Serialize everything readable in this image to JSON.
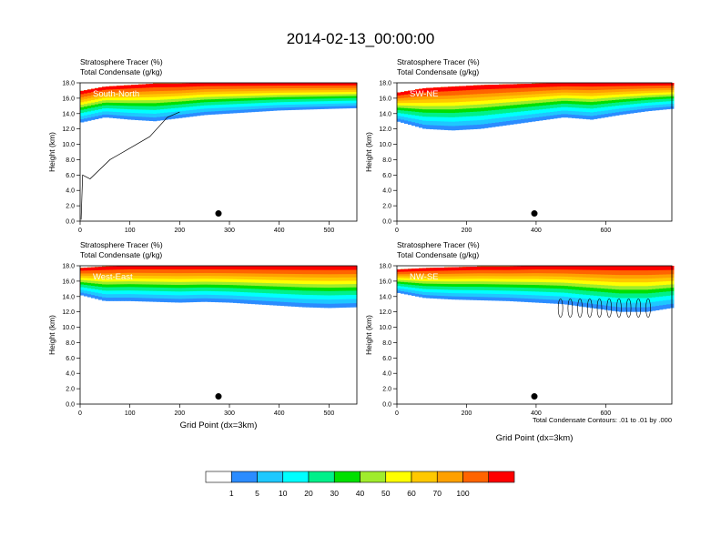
{
  "figure": {
    "title": "2014-02-13_00:00:00",
    "footnote": "Total Condensate Contours: .01 to .01 by .000"
  },
  "colorbar": {
    "colors": [
      "#ffffff",
      "#2b8cff",
      "#1ec8ff",
      "#00ffff",
      "#00f08a",
      "#00e000",
      "#a0ec2c",
      "#ffff00",
      "#ffc800",
      "#ffa000",
      "#ff6400",
      "#ff0000"
    ],
    "labels": [
      "1",
      "5",
      "10",
      "20",
      "30",
      "40",
      "50",
      "60",
      "70",
      "100"
    ]
  },
  "chart_data": [
    {
      "type": "heatmap",
      "name": "South-North",
      "title_line1": "Stratosphere Tracer   (%)",
      "title_line2": "Total Condensate   (g/kg)",
      "xlabel": "",
      "ylabel": "Height (km)",
      "xlim": [
        0,
        556
      ],
      "ylim": [
        0,
        18
      ],
      "xticks": [
        "0",
        "100",
        "200",
        "300",
        "400",
        "500"
      ],
      "yticks": [
        "0.0",
        "2.0",
        "4.0",
        "6.0",
        "8.0",
        "10.0",
        "12.0",
        "14.0",
        "16.0",
        "18.0"
      ],
      "marker_x": 278,
      "marker_y": 1.0,
      "tracer_profile_x": [
        0,
        50,
        100,
        150,
        200,
        250,
        300,
        350,
        400,
        450,
        500,
        556
      ],
      "tracer_bottom_km": [
        12.8,
        13.5,
        13.2,
        13.0,
        13.4,
        13.8,
        14.0,
        14.2,
        14.4,
        14.5,
        14.6,
        14.7
      ],
      "tracer_top_km": [
        16.2,
        16.8,
        17.0,
        17.2,
        17.2,
        17.3,
        17.3,
        17.4,
        17.4,
        17.4,
        17.4,
        17.4
      ]
    },
    {
      "type": "heatmap",
      "name": "SW-NE",
      "title_line1": "Stratosphere Tracer   (%)",
      "title_line2": "Total Condensate   (g/kg)",
      "xlabel": "",
      "ylabel": "Height (km)",
      "xlim": [
        0,
        790
      ],
      "ylim": [
        0,
        18
      ],
      "xticks": [
        "0",
        "200",
        "400",
        "600"
      ],
      "yticks": [
        "0.0",
        "2.0",
        "4.0",
        "6.0",
        "8.0",
        "10.0",
        "12.0",
        "14.0",
        "16.0",
        "18.0"
      ],
      "marker_x": 395,
      "marker_y": 1.0,
      "tracer_profile_x": [
        0,
        80,
        160,
        240,
        320,
        400,
        480,
        560,
        640,
        720,
        790
      ],
      "tracer_bottom_km": [
        13.0,
        12.0,
        11.8,
        12.0,
        12.5,
        13.0,
        13.5,
        13.2,
        13.8,
        14.3,
        14.6
      ],
      "tracer_top_km": [
        16.0,
        16.6,
        16.8,
        17.0,
        17.1,
        17.2,
        17.3,
        17.3,
        17.4,
        17.4,
        17.4
      ]
    },
    {
      "type": "heatmap",
      "name": "West-East",
      "title_line1": "Stratosphere Tracer   (%)",
      "title_line2": "Total Condensate   (g/kg)",
      "xlabel": "Grid Point (dx=3km)",
      "ylabel": "Height (km)",
      "xlim": [
        0,
        556
      ],
      "ylim": [
        0,
        18
      ],
      "xticks": [
        "0",
        "100",
        "200",
        "300",
        "400",
        "500"
      ],
      "yticks": [
        "0.0",
        "2.0",
        "4.0",
        "6.0",
        "8.0",
        "10.0",
        "12.0",
        "14.0",
        "16.0",
        "18.0"
      ],
      "marker_x": 278,
      "marker_y": 1.0,
      "tracer_profile_x": [
        0,
        50,
        100,
        150,
        200,
        250,
        300,
        350,
        400,
        450,
        500,
        556
      ],
      "tracer_bottom_km": [
        14.2,
        13.4,
        13.4,
        13.3,
        13.2,
        13.3,
        13.2,
        13.0,
        12.8,
        12.6,
        12.5,
        12.6
      ],
      "tracer_top_km": [
        17.0,
        17.2,
        17.3,
        17.3,
        17.3,
        17.3,
        17.4,
        17.4,
        17.4,
        17.4,
        17.4,
        17.4
      ]
    },
    {
      "type": "heatmap",
      "name": "NW-SE",
      "title_line1": "Stratosphere Tracer   (%)",
      "title_line2": "Total Condensate   (g/kg)",
      "xlabel": "Grid Point (dx=3km)",
      "ylabel": "Height (km)",
      "xlim": [
        0,
        790
      ],
      "ylim": [
        0,
        18
      ],
      "xticks": [
        "0",
        "200",
        "400",
        "600"
      ],
      "yticks": [
        "0.0",
        "2.0",
        "4.0",
        "6.0",
        "8.0",
        "10.0",
        "12.0",
        "14.0",
        "16.0",
        "18.0"
      ],
      "marker_x": 395,
      "marker_y": 1.0,
      "tracer_profile_x": [
        0,
        80,
        160,
        240,
        320,
        400,
        480,
        560,
        640,
        720,
        790
      ],
      "tracer_bottom_km": [
        14.5,
        13.8,
        13.6,
        13.5,
        13.4,
        13.2,
        13.0,
        12.5,
        12.0,
        12.0,
        12.5
      ],
      "tracer_top_km": [
        16.8,
        17.0,
        17.1,
        17.2,
        17.2,
        17.3,
        17.3,
        17.3,
        17.3,
        17.3,
        17.3
      ]
    }
  ]
}
